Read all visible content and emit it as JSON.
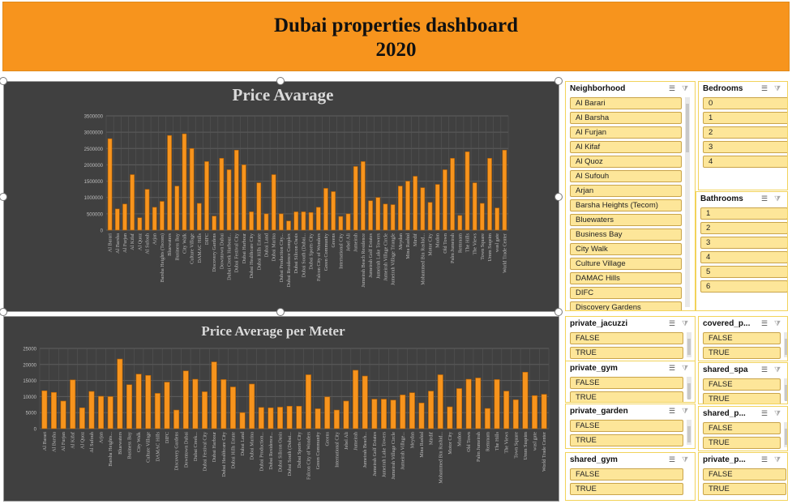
{
  "dashboard": {
    "title_line1": "Dubai properties dashboard",
    "title_line2": "2020"
  },
  "chart_data": [
    {
      "type": "bar",
      "title": "Price Avarage",
      "ylim": [
        0,
        3500000
      ],
      "yticks": [
        "3500000",
        "3000000",
        "2500000",
        "2000000",
        "1500000",
        "1000000",
        "500000",
        "0"
      ],
      "grid": true,
      "bar_color": "#f7941d",
      "categories": [
        "Al Barari",
        "Al Barsha",
        "Al Furjan",
        "Al Kifaf",
        "Al Quoz",
        "Al Sufouh",
        "Arjan",
        "Barsha Heights (Tecom)",
        "Bluewaters",
        "Business Bay",
        "City Walk",
        "Culture Village",
        "DAMAC Hills",
        "DIFC",
        "Discovery Gardens",
        "Downtown Dubai",
        "Dubai Creek Harbour...",
        "Dubai Festival City",
        "Dubai Harbour",
        "Dubai Healthcare City",
        "Dubai Hills Estate",
        "Dubai Land",
        "Dubai Marina",
        "Dubai Production City...",
        "Dubai Residence Complex",
        "Dubai Silicon Oasis",
        "Dubai South (Dubai...",
        "Dubai Sports City",
        "Falcon City of Wonders",
        "Green Community",
        "Greens",
        "International City",
        "Jebel Ali",
        "Jumeirah",
        "Jumeirah Beach Residence",
        "Jumeirah Golf Estates",
        "Jumeirah Lake Towers",
        "Jumeirah Village Circle",
        "Jumeirah Village Triangle",
        "Meydan",
        "Mina Rashid",
        "Mirdif",
        "Mohammed Bin Rashid...",
        "Motor City",
        "Mudon",
        "Old Town",
        "Palm Jumeirah",
        "Remraam",
        "The Hills",
        "The Views",
        "Town Square",
        "Umm Suqeim",
        "wasl gate",
        "World Trade Center"
      ],
      "values": [
        2800000,
        650000,
        800000,
        1700000,
        380000,
        1250000,
        700000,
        880000,
        2900000,
        1350000,
        2950000,
        2500000,
        820000,
        2100000,
        430000,
        2200000,
        1850000,
        2450000,
        2000000,
        560000,
        1450000,
        500000,
        1700000,
        500000,
        280000,
        560000,
        560000,
        540000,
        700000,
        1280000,
        1180000,
        420000,
        500000,
        1950000,
        2100000,
        900000,
        1000000,
        800000,
        780000,
        1350000,
        1500000,
        1650000,
        1300000,
        850000,
        1400000,
        1850000,
        2200000,
        450000,
        2400000,
        1450000,
        820000,
        2200000,
        680000,
        2450000
      ]
    },
    {
      "type": "bar",
      "title": "Price Average per Meter",
      "ylim": [
        0,
        25000
      ],
      "yticks": [
        "25000",
        "20000",
        "15000",
        "10000",
        "5000",
        "0"
      ],
      "grid": true,
      "bar_color": "#f7941d",
      "categories": [
        "Al Barari",
        "Al Barsha",
        "Al Furjan",
        "Al Kifaf",
        "Al Quoz",
        "Al Sufouh",
        "Arjan",
        "Barsha Heights...",
        "Bluewaters",
        "Business Bay",
        "City Walk",
        "Culture Village",
        "DAMAC Hills",
        "DIFC",
        "Discovery Gardens",
        "Downtown Dubai",
        "Dubai Creek...",
        "Dubai Festival City",
        "Dubai Harbour",
        "Dubai Healthcare City",
        "Dubai Hills Estate",
        "Dubai Land",
        "Dubai Marina",
        "Dubai Production...",
        "Dubai Residence...",
        "Dubai Silicon Oasis",
        "Dubai South (Dubai...",
        "Dubai Sports City",
        "Falcon City of Wonders",
        "Green Community",
        "Greens",
        "International City",
        "Jebel Ali",
        "Jumeirah",
        "Jumeirah Beach...",
        "Jumeirah Golf Estates",
        "Jumeirah Lake Towers",
        "Jumeirah Village Circle",
        "Jumeirah Village...",
        "Meydan",
        "Mina Rashid",
        "Mirdif",
        "Mohammed Bin Rashid...",
        "Motor City",
        "Mudon",
        "Old Town",
        "Palm Jumeirah",
        "Remraam",
        "The Hills",
        "The Views",
        "Town Square",
        "Umm Suqeim",
        "wasl gate",
        "World Trade Center"
      ],
      "values": [
        11800,
        11300,
        8600,
        15200,
        6500,
        11600,
        10100,
        10000,
        21700,
        13700,
        17000,
        16600,
        11000,
        14500,
        5800,
        18000,
        15400,
        11500,
        20800,
        15300,
        13000,
        5000,
        13900,
        6600,
        6500,
        6700,
        7000,
        7000,
        16800,
        6200,
        9900,
        5800,
        8600,
        18200,
        16400,
        9200,
        9200,
        8900,
        10500,
        11200,
        8000,
        11700,
        16800,
        6800,
        12500,
        15400,
        15800,
        6300,
        15300,
        11700,
        9000,
        17600,
        10300,
        10700
      ]
    }
  ],
  "slicers": {
    "neighborhood": {
      "title": "Neighborhood",
      "items": [
        "Al Barari",
        "Al Barsha",
        "Al Furjan",
        "Al Kifaf",
        "Al Quoz",
        "Al Sufouh",
        "Arjan",
        "Barsha Heights (Tecom)",
        "Bluewaters",
        "Business Bay",
        "City Walk",
        "Culture Village",
        "DAMAC Hills",
        "DIFC",
        "Discovery Gardens"
      ]
    },
    "bedrooms": {
      "title": "Bedrooms",
      "items": [
        "0",
        "1",
        "2",
        "3",
        "4"
      ]
    },
    "bathrooms": {
      "title": "Bathrooms",
      "items": [
        "1",
        "2",
        "3",
        "4",
        "5",
        "6"
      ]
    },
    "private_jacuzzi": {
      "title": "private_jacuzzi",
      "items": [
        "FALSE",
        "TRUE"
      ]
    },
    "covered_parking": {
      "title": "covered_p...",
      "items": [
        "FALSE",
        "TRUE"
      ]
    },
    "private_gym": {
      "title": "private_gym",
      "items": [
        "FALSE",
        "TRUE"
      ]
    },
    "shared_spa": {
      "title": "shared_spa",
      "items": [
        "FALSE",
        "TRUE"
      ]
    },
    "private_garden": {
      "title": "private_garden",
      "items": [
        "FALSE",
        "TRUE"
      ]
    },
    "shared_pool": {
      "title": "shared_p...",
      "items": [
        "FALSE",
        "TRUE"
      ]
    },
    "shared_gym": {
      "title": "shared_gym",
      "items": [
        "FALSE",
        "TRUE"
      ]
    },
    "private_pool": {
      "title": "private_p...",
      "items": [
        "FALSE",
        "TRUE"
      ]
    }
  }
}
